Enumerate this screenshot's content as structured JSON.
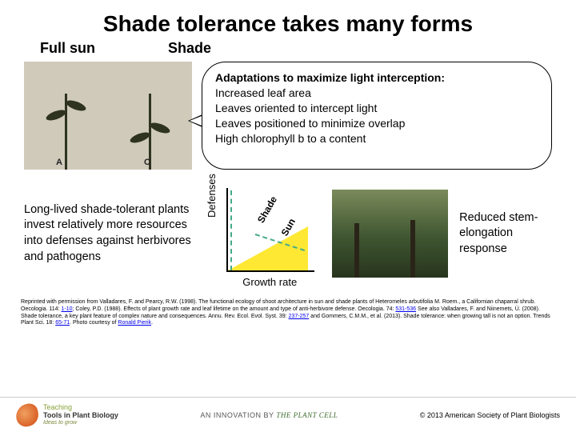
{
  "title": "Shade tolerance takes many forms",
  "subheads": {
    "fullsun": "Full sun",
    "shade": "Shade"
  },
  "plant_labels": {
    "a": "A",
    "c": "C"
  },
  "callout": {
    "lead": "Adaptations to maximize light interception:",
    "l1": "Increased leaf area",
    "l2": "Leaves oriented to intercept light",
    "l3": "Leaves positioned to minimize overlap",
    "l4": "High chlorophyll b to a content"
  },
  "defense_text": "Long-lived shade-tolerant plants invest relatively more resources into defenses against herbivores and pathogens",
  "chart": {
    "type": "line",
    "ylabel": "Defenses",
    "xlabel": "Growth rate",
    "series": [
      {
        "name": "Shade",
        "label": "Shade",
        "color": "#4a8",
        "dash": "dashed",
        "points": [
          [
            0.05,
            0.95
          ],
          [
            0.95,
            0.42
          ]
        ]
      },
      {
        "name": "Sun",
        "label": "Sun",
        "color": "#e5d400",
        "fill": "#ffe833",
        "points": [
          [
            0.05,
            0.02
          ],
          [
            0.95,
            0.5
          ]
        ]
      }
    ],
    "xlim": [
      0,
      1
    ],
    "ylim": [
      0,
      1
    ],
    "background": "#ffffff",
    "axis_color": "#000000",
    "font_size": 13
  },
  "stem_text": "Reduced stem-elongation response",
  "citation": {
    "text1": "Reprinted with permission from Valladares, F. and Pearcy, R.W. (1998). The functional ecology of shoot architecture in sun and shade plants of Heteromeles arbutifolia M. Roem., a Californian chaparral shrub. Oecologia. 114: ",
    "link1": "1-10",
    "text2": "; Coley, P.D. (1988). Effects of plant growth rate and leaf lifetime on the amount and type of anti-herbivore defense. Oecologia. 74: ",
    "link2": "531-536",
    "text3": " See also Valladares, F. and Niinemets, Ü. (2008). Shade tolerance, a key plant feature of complex nature and consequences. Annu. Rev. Ecol. Evol. Syst. 39: ",
    "link3": "237-257",
    "text4": " and Gommers, C.M.M., et al. (2013). Shade tolerance: when growing tall is not an option. Trends Plant Sci. 18: ",
    "link4": "65-71",
    "text5": ". Photo courtesy of ",
    "link5": "Ronald Pierik",
    "text6": "."
  },
  "footer": {
    "logo_l1": "Teaching",
    "logo_l2": "Tools in Plant Biology",
    "logo_l3": "Ideas to grow",
    "innovation_pre": "AN INNOVATION BY ",
    "innovation_brand": "THE PLANT CELL",
    "copyright": "© 2013 American Society of Plant Biologists"
  }
}
